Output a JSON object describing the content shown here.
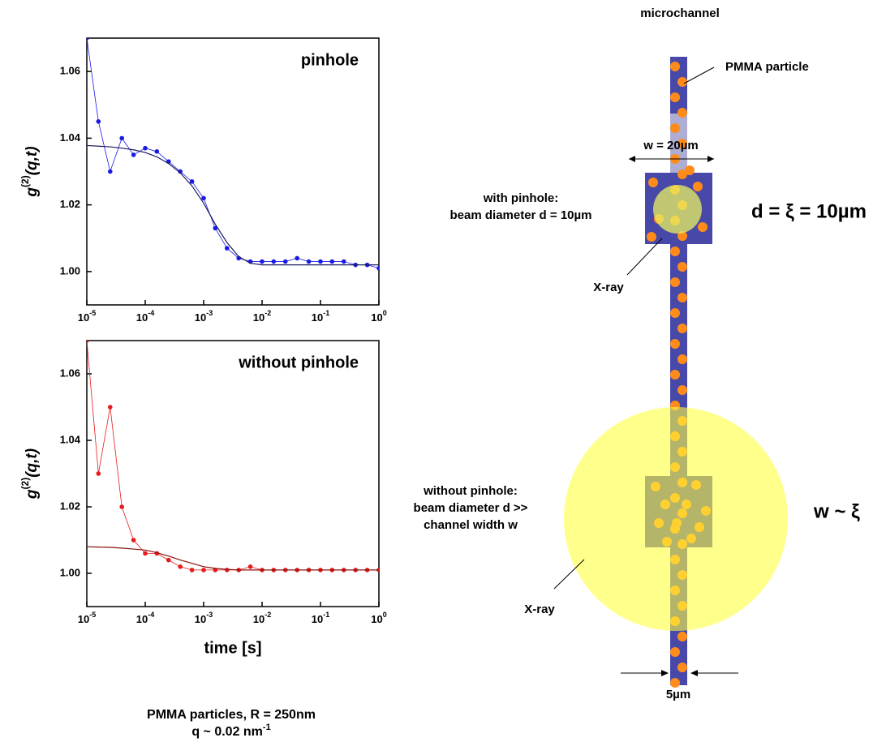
{
  "chart_data": [
    {
      "type": "scatter",
      "title": "pinhole",
      "y_label_parts": [
        "g",
        "(2)",
        "(q,t)"
      ],
      "xscale": "log",
      "xlim": [
        1e-05,
        1
      ],
      "ylim": [
        0.99,
        1.07
      ],
      "xticks": [
        {
          "value": 1e-05,
          "label": "10",
          "exponent": "-5"
        },
        {
          "value": 0.0001,
          "label": "10",
          "exponent": "-4"
        },
        {
          "value": 0.001,
          "label": "10",
          "exponent": "-3"
        },
        {
          "value": 0.01,
          "label": "10",
          "exponent": "-2"
        },
        {
          "value": 0.1,
          "label": "10",
          "exponent": "-1"
        },
        {
          "value": 1,
          "label": "10",
          "exponent": "0"
        }
      ],
      "yticks": [
        {
          "value": 1,
          "label": "1.00"
        },
        1.02,
        1.04,
        1.06
      ],
      "x": [
        1e-05,
        1.58e-05,
        2.51e-05,
        3.98e-05,
        6.31e-05,
        0.0001,
        0.000158,
        0.000251,
        0.000398,
        0.000631,
        0.001,
        0.00158,
        0.00251,
        0.00398,
        0.00631,
        0.01,
        0.0158,
        0.0251,
        0.0398,
        0.0631,
        0.1,
        0.158,
        0.251,
        0.398,
        0.631,
        1
      ],
      "series": [
        {
          "color": "#1a1ae6",
          "values": [
            1.07,
            1.045,
            1.03,
            1.04,
            1.035,
            1.037,
            1.036,
            1.033,
            1.03,
            1.027,
            1.022,
            1.013,
            1.007,
            1.004,
            1.003,
            1.003,
            1.003,
            1.003,
            1.004,
            1.003,
            1.003,
            1.003,
            1.003,
            1.002,
            1.002,
            1.001
          ]
        }
      ],
      "fit": {
        "color": "#1a1a60",
        "values": [
          1.0378,
          1.0376,
          1.0374,
          1.037,
          1.0365,
          1.0357,
          1.0344,
          1.0324,
          1.0296,
          1.0257,
          1.0205,
          1.0142,
          1.0087,
          1.0045,
          1.0025,
          1.002,
          1.002,
          1.002,
          1.002,
          1.002,
          1.002,
          1.002,
          1.002,
          1.002,
          1.002,
          1.002
        ]
      }
    },
    {
      "type": "scatter",
      "title": "without pinhole",
      "y_label_parts": [
        "g",
        "(2)",
        "(q,t)"
      ],
      "x_label": "time [s]",
      "xscale": "log",
      "xlim": [
        1e-05,
        1
      ],
      "ylim": [
        0.99,
        1.07
      ],
      "xticks": [
        {
          "value": 1e-05,
          "label": "10",
          "exponent": "-5"
        },
        {
          "value": 0.0001,
          "label": "10",
          "exponent": "-4"
        },
        {
          "value": 0.001,
          "label": "10",
          "exponent": "-3"
        },
        {
          "value": 0.01,
          "label": "10",
          "exponent": "-2"
        },
        {
          "value": 0.1,
          "label": "10",
          "exponent": "-1"
        },
        {
          "value": 1,
          "label": "10",
          "exponent": "0"
        }
      ],
      "yticks": [
        {
          "value": 1,
          "label": "1.00"
        },
        1.02,
        1.04,
        1.06
      ],
      "x": [
        1e-05,
        1.58e-05,
        2.51e-05,
        3.98e-05,
        6.31e-05,
        0.0001,
        0.000158,
        0.000251,
        0.000398,
        0.000631,
        0.001,
        0.00158,
        0.00251,
        0.00398,
        0.00631,
        0.01,
        0.0158,
        0.0251,
        0.0398,
        0.0631,
        0.1,
        0.158,
        0.251,
        0.398,
        0.631,
        1
      ],
      "series": [
        {
          "color": "#e61a1a",
          "values": [
            1.07,
            1.03,
            1.05,
            1.02,
            1.01,
            1.006,
            1.006,
            1.004,
            1.002,
            1.001,
            1.001,
            1.001,
            1.001,
            1.001,
            1.002,
            1.001,
            1.001,
            1.001,
            1.001,
            1.001,
            1.001,
            1.001,
            1.001,
            1.001,
            1.001,
            1.001
          ]
        }
      ],
      "fit": {
        "color": "#8a1010",
        "values": [
          1.008,
          1.0079,
          1.0078,
          1.0076,
          1.0073,
          1.007,
          1.0062,
          1.0052,
          1.004,
          1.003,
          1.002,
          1.0015,
          1.0012,
          1.001,
          1.001,
          1.001,
          1.001,
          1.001,
          1.001,
          1.001,
          1.001,
          1.001,
          1.001,
          1.001,
          1.001,
          1.001
        ]
      }
    }
  ],
  "diagram": {
    "channel_label": "microchannel",
    "particle_label": "PMMA particle",
    "width_label": "w = 20µm",
    "pinhole_label": [
      "with pinhole:",
      "beam diameter d = 10µm"
    ],
    "pinhole_relation": "d = ξ = 10µm",
    "xray_label_1": "X-ray",
    "no_pinhole_label": [
      "without pinhole:",
      "beam diameter d >>",
      "channel width w"
    ],
    "no_pinhole_relation": "w ~ ξ",
    "xray_label_2": "X-ray",
    "channel_width_label": "5µm"
  },
  "caption": {
    "line1": "PMMA particles, R = 250nm",
    "line2": [
      "q ~ 0.02 nm",
      "-1"
    ]
  }
}
